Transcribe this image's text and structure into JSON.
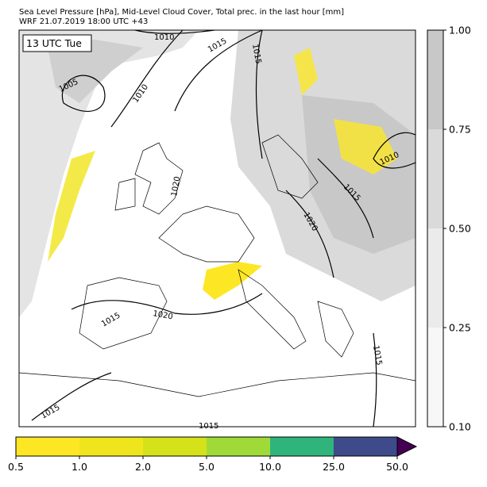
{
  "header": {
    "line1": "Sea Level Pressure [hPa], Mid-Level Cloud Cover, Total prec. in the last hour [mm]",
    "line2": "WRF 21.07.2019 18:00 UTC +43"
  },
  "map": {
    "time_label": "13 UTC Tue",
    "contour_labels": [
      "1010",
      "1015",
      "1015",
      "1005",
      "1010",
      "1020",
      "1010",
      "1015",
      "1020",
      "1015",
      "1020",
      "1015",
      "1015",
      "1015"
    ]
  },
  "cloud_colorbar": {
    "ticks": [
      {
        "value": 0.1,
        "label": "0.10"
      },
      {
        "value": 0.25,
        "label": "0.25"
      },
      {
        "value": 0.5,
        "label": "0.50"
      },
      {
        "value": 0.75,
        "label": "0.75"
      },
      {
        "value": 1,
        "label": "1.00"
      }
    ],
    "colors": [
      "#f7f7f7",
      "#ebebeb",
      "#dadada",
      "#c8c8c8"
    ]
  },
  "precip_colorbar": {
    "ticks": [
      0.5,
      {
        "value": 1,
        "label": "1.0"
      },
      {
        "value": 2,
        "label": "2.0"
      },
      {
        "value": 5,
        "label": "5.0"
      },
      {
        "value": 10,
        "label": "10.0"
      },
      {
        "value": 25,
        "label": "25.0"
      },
      {
        "value": 50,
        "label": "50.0"
      }
    ],
    "colors": [
      "#fde725",
      "#efe51c",
      "#d5e21a",
      "#a0da39",
      "#2fb47c",
      "#3e4a89"
    ],
    "extend_color": "#440154"
  }
}
